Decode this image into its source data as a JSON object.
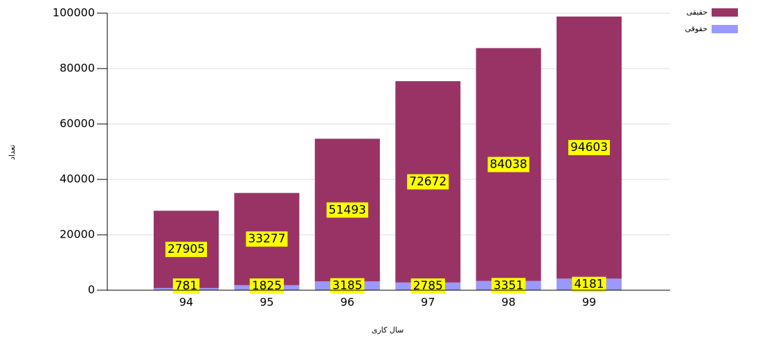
{
  "chart_data": {
    "type": "stacked_bar",
    "xlabel": "سال کاری",
    "ylabel": "تعداد",
    "categories": [
      "94",
      "95",
      "96",
      "97",
      "98",
      "99"
    ],
    "series": [
      {
        "name": "حقوقی",
        "color": "#9999ff",
        "values": [
          781,
          1825,
          3185,
          2785,
          3351,
          4181
        ]
      },
      {
        "name": "حقیقی",
        "color": "#993366",
        "values": [
          27905,
          33277,
          51493,
          72672,
          84038,
          94603
        ]
      }
    ],
    "ylim": [
      0,
      100000
    ],
    "yticks": [
      0,
      20000,
      40000,
      60000,
      80000,
      100000
    ],
    "grid": true
  }
}
